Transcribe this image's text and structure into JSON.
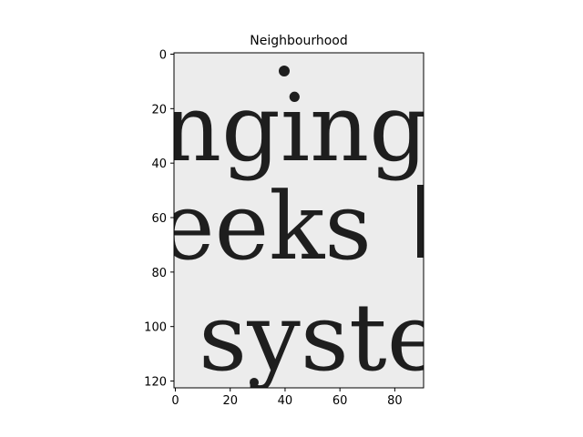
{
  "chart_data": {
    "type": "image",
    "title": "Neighbourhood",
    "colormap": "gray",
    "image_width": 91,
    "image_height": 123,
    "xlim": [
      0,
      91
    ],
    "ylim": [
      123,
      0
    ],
    "x_ticks": [
      0,
      20,
      40,
      60,
      80
    ],
    "y_ticks": [
      0,
      20,
      40,
      60,
      80,
      100,
      120
    ],
    "grid": false,
    "content_lines": [
      "nging",
      "eeks",
      "syste"
    ]
  },
  "figure": {
    "background": "#ffffff",
    "image_background": "#ececec",
    "ink_color": "#1e1e1e",
    "axis_color": "#000000"
  }
}
